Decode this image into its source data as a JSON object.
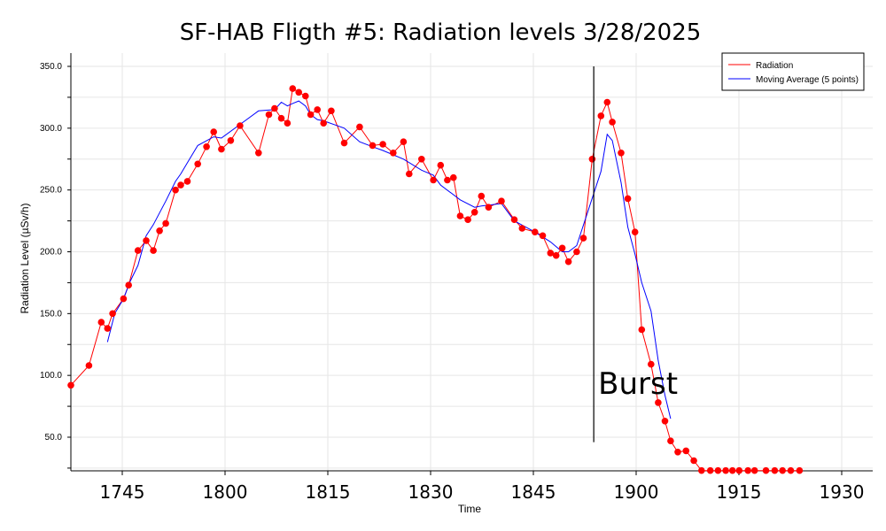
{
  "chart_data": {
    "type": "line",
    "title": "SF-HAB Fligth #5: Radiation levels 3/28/2025",
    "xlabel": "Time",
    "ylabel": "Radiation Level (µSv/h)",
    "x_ticks": [
      "1745",
      "1800",
      "1815",
      "1830",
      "1845",
      "1900",
      "1915",
      "1930"
    ],
    "y_ticks": [
      "50.0",
      "100.0",
      "150.0",
      "200.0",
      "250.0",
      "300.0",
      "350.0"
    ],
    "ylim": [
      25,
      358
    ],
    "grid": true,
    "legend_position": "top-right",
    "colors": {
      "radiation": "#ff0000",
      "moving_average": "#0000ff",
      "marker": "#ff0000"
    },
    "series": [
      {
        "name": "Radiation",
        "x": [
          0.0,
          0.35,
          0.59,
          0.71,
          0.81,
          1.02,
          1.12,
          1.3,
          1.46,
          1.6,
          1.72,
          1.84,
          2.03,
          2.13,
          2.26,
          2.46,
          2.63,
          2.77,
          2.92,
          3.1,
          3.28,
          3.64,
          3.84,
          3.95,
          4.08,
          4.2,
          4.3,
          4.42,
          4.55,
          4.65,
          4.78,
          4.9,
          5.05,
          5.3,
          5.6,
          5.85,
          6.05,
          6.25,
          6.45,
          6.56,
          6.8,
          7.03,
          7.17,
          7.3,
          7.42,
          7.55,
          7.7,
          7.83,
          7.96,
          8.1,
          8.35,
          8.6,
          8.75,
          9.0,
          9.15,
          9.3,
          9.41,
          9.53,
          9.65,
          9.81,
          9.94,
          10.11,
          10.28,
          10.4,
          10.5,
          10.67,
          10.8,
          10.94,
          11.07,
          11.25,
          11.39,
          11.52,
          11.63,
          11.77,
          11.93,
          12.08,
          12.23,
          12.4,
          12.55,
          12.7,
          12.83,
          12.96,
          13.13,
          13.26,
          13.48,
          13.65,
          13.8,
          13.96,
          14.13
        ],
        "values": [
          92,
          108,
          143,
          138,
          150,
          162,
          173,
          201,
          209,
          201,
          217,
          223,
          250,
          254,
          257,
          271,
          285,
          297,
          283,
          290,
          302,
          280,
          311,
          316,
          308,
          304,
          332,
          329,
          326,
          311,
          315,
          304,
          314,
          288,
          301,
          286,
          287,
          280,
          289,
          263,
          275,
          258,
          270,
          258,
          260,
          229,
          226,
          232,
          245,
          236,
          241,
          226,
          219,
          216,
          213,
          199,
          197,
          203,
          192,
          200,
          211,
          275,
          310,
          321,
          305,
          280,
          243,
          216,
          137,
          109,
          78,
          63,
          47,
          38,
          39,
          31,
          23,
          23,
          23,
          23,
          23,
          23,
          23,
          23,
          23,
          23,
          23,
          23,
          23
        ]
      },
      {
        "name": "Moving Average (5 points)",
        "x": [
          0.71,
          0.85,
          1.02,
          1.15,
          1.3,
          1.46,
          1.6,
          1.84,
          2.03,
          2.13,
          2.26,
          2.46,
          2.77,
          2.92,
          3.28,
          3.64,
          3.95,
          4.08,
          4.2,
          4.3,
          4.42,
          4.55,
          4.65,
          4.78,
          4.9,
          5.3,
          5.6,
          5.85,
          6.05,
          6.45,
          6.8,
          7.03,
          7.17,
          7.55,
          7.83,
          7.96,
          8.35,
          8.6,
          9.0,
          9.3,
          9.53,
          9.65,
          9.81,
          10.28,
          10.4,
          10.5,
          10.67,
          10.8,
          10.94,
          11.07,
          11.25,
          11.39,
          11.52,
          11.63
        ],
        "values": [
          127,
          150,
          162,
          176,
          189,
          213,
          222,
          241,
          257,
          263,
          272,
          286,
          293,
          292,
          303,
          314,
          315,
          321,
          318,
          320,
          322,
          318,
          311,
          307,
          306,
          300,
          289,
          285,
          282,
          275,
          266,
          262,
          254,
          242,
          236,
          237,
          239,
          225,
          216,
          208,
          200,
          200,
          205,
          265,
          295,
          290,
          256,
          220,
          198,
          175,
          152,
          112,
          84,
          65
        ]
      }
    ],
    "annotations": [
      {
        "text": "Burst",
        "x": 10.14,
        "line_from": 46,
        "line_to": 350
      }
    ]
  }
}
